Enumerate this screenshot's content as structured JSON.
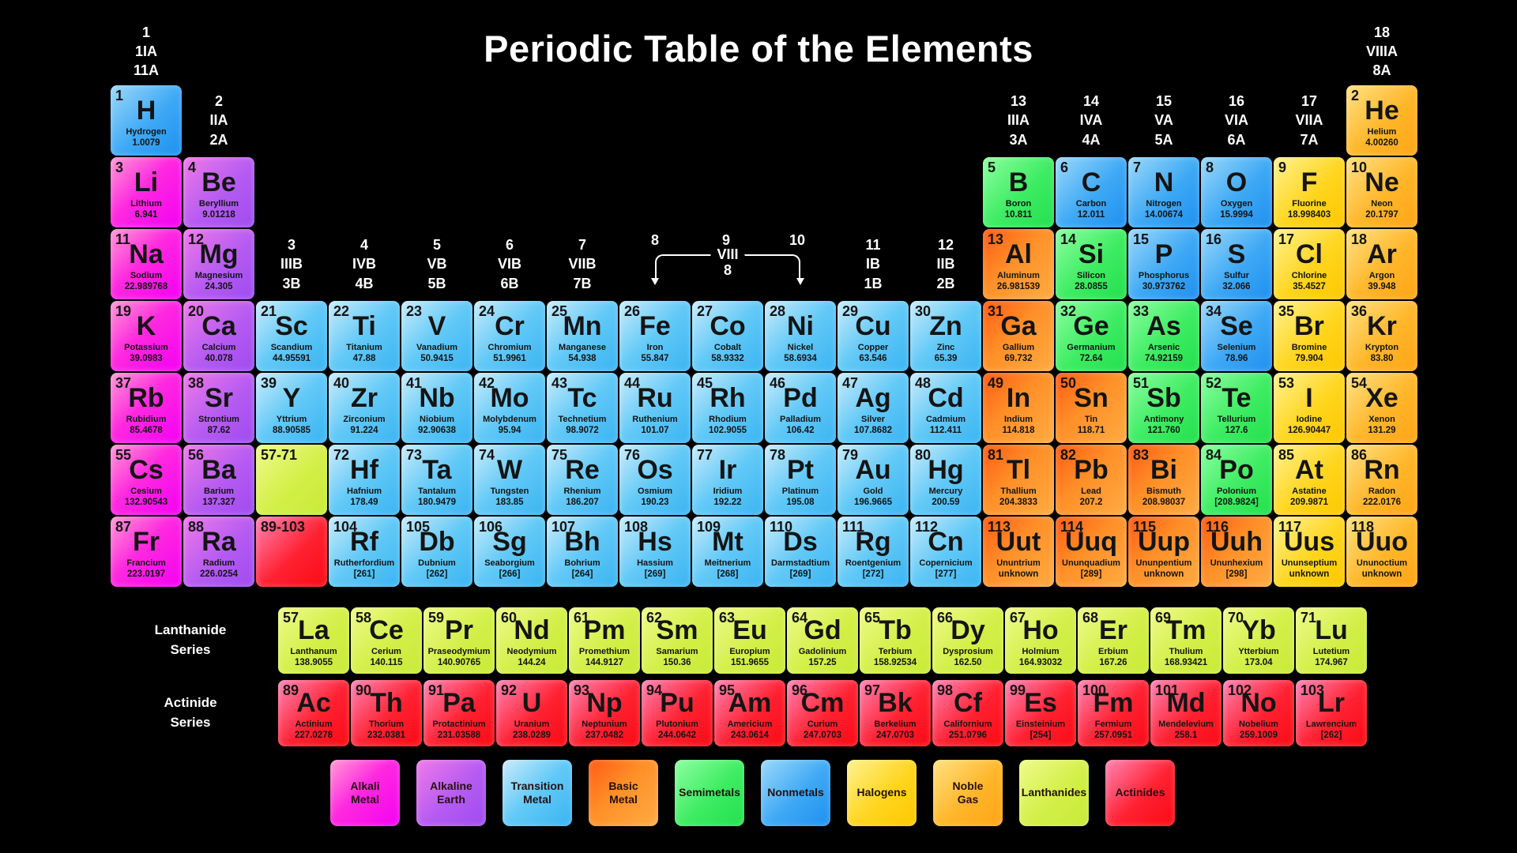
{
  "title": "Periodic Table of the Elements",
  "colors": {
    "background": "#000000",
    "title_text": "#ffffff",
    "alkali": "#ff00ff",
    "alkaline": "#a855f7",
    "transition": "#4fc3f7",
    "basic": "#ff8c1a",
    "semimetal": "#2ee84e",
    "nonmetal": "#2196f3",
    "halogen": "#ffd117",
    "noble": "#ffa416",
    "lanthanide": "#cdea3f",
    "actinide": "#ff1a1a"
  },
  "group_headers": {
    "top": [
      {
        "col": 1,
        "lines": [
          "1",
          "1IA",
          "11A"
        ]
      },
      {
        "col": 18,
        "lines": [
          "18",
          "VIIIA",
          "8A"
        ]
      }
    ],
    "period1": [
      {
        "col": 2,
        "lines": [
          "2",
          "IIA",
          "2A"
        ]
      },
      {
        "col": 13,
        "lines": [
          "13",
          "IIIA",
          "3A"
        ]
      },
      {
        "col": 14,
        "lines": [
          "14",
          "IVA",
          "4A"
        ]
      },
      {
        "col": 15,
        "lines": [
          "15",
          "VA",
          "5A"
        ]
      },
      {
        "col": 16,
        "lines": [
          "16",
          "VIA",
          "6A"
        ]
      },
      {
        "col": 17,
        "lines": [
          "17",
          "VIIA",
          "7A"
        ]
      }
    ],
    "period3": [
      {
        "col": 3,
        "lines": [
          "3",
          "IIIB",
          "3B"
        ]
      },
      {
        "col": 4,
        "lines": [
          "4",
          "IVB",
          "4B"
        ]
      },
      {
        "col": 5,
        "lines": [
          "5",
          "VB",
          "5B"
        ]
      },
      {
        "col": 6,
        "lines": [
          "6",
          "VIB",
          "6B"
        ]
      },
      {
        "col": 7,
        "lines": [
          "7",
          "VIIB",
          "7B"
        ]
      },
      {
        "col": 11,
        "lines": [
          "11",
          "IB",
          "1B"
        ]
      },
      {
        "col": 12,
        "lines": [
          "12",
          "IIB",
          "2B"
        ]
      }
    ],
    "viii_group": {
      "left_num": "8",
      "mid_num": "9",
      "right_num": "10",
      "bracket_label": "VIII",
      "bracket_sub": "8"
    }
  },
  "series": {
    "lanthanide_label_line1": "Lanthanide",
    "lanthanide_label_line2": "Series",
    "actinide_label_line1": "Actinide",
    "actinide_label_line2": "Series"
  },
  "placeholders": [
    {
      "label": "57-71",
      "cat": "lanthanide",
      "period": 6,
      "col": 3
    },
    {
      "label": "89-103",
      "cat": "actinide",
      "period": 7,
      "col": 3
    }
  ],
  "elements": [
    {
      "n": 1,
      "s": "H",
      "nm": "Hydrogen",
      "m": "1.0079",
      "c": "nonmetal",
      "p": 1,
      "g": 1
    },
    {
      "n": 2,
      "s": "He",
      "nm": "Helium",
      "m": "4.00260",
      "c": "noble",
      "p": 1,
      "g": 18
    },
    {
      "n": 3,
      "s": "Li",
      "nm": "Lithium",
      "m": "6.941",
      "c": "alkali",
      "p": 2,
      "g": 1
    },
    {
      "n": 4,
      "s": "Be",
      "nm": "Beryllium",
      "m": "9.01218",
      "c": "alkaline",
      "p": 2,
      "g": 2
    },
    {
      "n": 5,
      "s": "B",
      "nm": "Boron",
      "m": "10.811",
      "c": "semimetal",
      "p": 2,
      "g": 13
    },
    {
      "n": 6,
      "s": "C",
      "nm": "Carbon",
      "m": "12.011",
      "c": "nonmetal",
      "p": 2,
      "g": 14
    },
    {
      "n": 7,
      "s": "N",
      "nm": "Nitrogen",
      "m": "14.00674",
      "c": "nonmetal",
      "p": 2,
      "g": 15
    },
    {
      "n": 8,
      "s": "O",
      "nm": "Oxygen",
      "m": "15.9994",
      "c": "nonmetal",
      "p": 2,
      "g": 16
    },
    {
      "n": 9,
      "s": "F",
      "nm": "Fluorine",
      "m": "18.998403",
      "c": "halogen",
      "p": 2,
      "g": 17
    },
    {
      "n": 10,
      "s": "Ne",
      "nm": "Neon",
      "m": "20.1797",
      "c": "noble",
      "p": 2,
      "g": 18
    },
    {
      "n": 11,
      "s": "Na",
      "nm": "Sodium",
      "m": "22.989768",
      "c": "alkali",
      "p": 3,
      "g": 1
    },
    {
      "n": 12,
      "s": "Mg",
      "nm": "Magnesium",
      "m": "24.305",
      "c": "alkaline",
      "p": 3,
      "g": 2
    },
    {
      "n": 13,
      "s": "Al",
      "nm": "Aluminum",
      "m": "26.981539",
      "c": "basic",
      "p": 3,
      "g": 13
    },
    {
      "n": 14,
      "s": "Si",
      "nm": "Silicon",
      "m": "28.0855",
      "c": "semimetal",
      "p": 3,
      "g": 14
    },
    {
      "n": 15,
      "s": "P",
      "nm": "Phosphorus",
      "m": "30.973762",
      "c": "nonmetal",
      "p": 3,
      "g": 15
    },
    {
      "n": 16,
      "s": "S",
      "nm": "Sulfur",
      "m": "32.066",
      "c": "nonmetal",
      "p": 3,
      "g": 16
    },
    {
      "n": 17,
      "s": "Cl",
      "nm": "Chlorine",
      "m": "35.4527",
      "c": "halogen",
      "p": 3,
      "g": 17
    },
    {
      "n": 18,
      "s": "Ar",
      "nm": "Argon",
      "m": "39.948",
      "c": "noble",
      "p": 3,
      "g": 18
    },
    {
      "n": 19,
      "s": "K",
      "nm": "Potassium",
      "m": "39.0983",
      "c": "alkali",
      "p": 4,
      "g": 1
    },
    {
      "n": 20,
      "s": "Ca",
      "nm": "Calcium",
      "m": "40.078",
      "c": "alkaline",
      "p": 4,
      "g": 2
    },
    {
      "n": 21,
      "s": "Sc",
      "nm": "Scandium",
      "m": "44.95591",
      "c": "transition",
      "p": 4,
      "g": 3
    },
    {
      "n": 22,
      "s": "Ti",
      "nm": "Titanium",
      "m": "47.88",
      "c": "transition",
      "p": 4,
      "g": 4
    },
    {
      "n": 23,
      "s": "V",
      "nm": "Vanadium",
      "m": "50.9415",
      "c": "transition",
      "p": 4,
      "g": 5
    },
    {
      "n": 24,
      "s": "Cr",
      "nm": "Chromium",
      "m": "51.9961",
      "c": "transition",
      "p": 4,
      "g": 6
    },
    {
      "n": 25,
      "s": "Mn",
      "nm": "Manganese",
      "m": "54.938",
      "c": "transition",
      "p": 4,
      "g": 7
    },
    {
      "n": 26,
      "s": "Fe",
      "nm": "Iron",
      "m": "55.847",
      "c": "transition",
      "p": 4,
      "g": 8
    },
    {
      "n": 27,
      "s": "Co",
      "nm": "Cobalt",
      "m": "58.9332",
      "c": "transition",
      "p": 4,
      "g": 9
    },
    {
      "n": 28,
      "s": "Ni",
      "nm": "Nickel",
      "m": "58.6934",
      "c": "transition",
      "p": 4,
      "g": 10
    },
    {
      "n": 29,
      "s": "Cu",
      "nm": "Copper",
      "m": "63.546",
      "c": "transition",
      "p": 4,
      "g": 11
    },
    {
      "n": 30,
      "s": "Zn",
      "nm": "Zinc",
      "m": "65.39",
      "c": "transition",
      "p": 4,
      "g": 12
    },
    {
      "n": 31,
      "s": "Ga",
      "nm": "Gallium",
      "m": "69.732",
      "c": "basic",
      "p": 4,
      "g": 13
    },
    {
      "n": 32,
      "s": "Ge",
      "nm": "Germanium",
      "m": "72.64",
      "c": "semimetal",
      "p": 4,
      "g": 14
    },
    {
      "n": 33,
      "s": "As",
      "nm": "Arsenic",
      "m": "74.92159",
      "c": "semimetal",
      "p": 4,
      "g": 15
    },
    {
      "n": 34,
      "s": "Se",
      "nm": "Selenium",
      "m": "78.96",
      "c": "nonmetal",
      "p": 4,
      "g": 16
    },
    {
      "n": 35,
      "s": "Br",
      "nm": "Bromine",
      "m": "79.904",
      "c": "halogen",
      "p": 4,
      "g": 17
    },
    {
      "n": 36,
      "s": "Kr",
      "nm": "Krypton",
      "m": "83.80",
      "c": "noble",
      "p": 4,
      "g": 18
    },
    {
      "n": 37,
      "s": "Rb",
      "nm": "Rubidium",
      "m": "85.4678",
      "c": "alkali",
      "p": 5,
      "g": 1
    },
    {
      "n": 38,
      "s": "Sr",
      "nm": "Strontium",
      "m": "87.62",
      "c": "alkaline",
      "p": 5,
      "g": 2
    },
    {
      "n": 39,
      "s": "Y",
      "nm": "Yttrium",
      "m": "88.90585",
      "c": "transition",
      "p": 5,
      "g": 3
    },
    {
      "n": 40,
      "s": "Zr",
      "nm": "Zirconium",
      "m": "91.224",
      "c": "transition",
      "p": 5,
      "g": 4
    },
    {
      "n": 41,
      "s": "Nb",
      "nm": "Niobium",
      "m": "92.90638",
      "c": "transition",
      "p": 5,
      "g": 5
    },
    {
      "n": 42,
      "s": "Mo",
      "nm": "Molybdenum",
      "m": "95.94",
      "c": "transition",
      "p": 5,
      "g": 6
    },
    {
      "n": 43,
      "s": "Tc",
      "nm": "Technetium",
      "m": "98.9072",
      "c": "transition",
      "p": 5,
      "g": 7
    },
    {
      "n": 44,
      "s": "Ru",
      "nm": "Ruthenium",
      "m": "101.07",
      "c": "transition",
      "p": 5,
      "g": 8
    },
    {
      "n": 45,
      "s": "Rh",
      "nm": "Rhodium",
      "m": "102.9055",
      "c": "transition",
      "p": 5,
      "g": 9
    },
    {
      "n": 46,
      "s": "Pd",
      "nm": "Palladium",
      "m": "106.42",
      "c": "transition",
      "p": 5,
      "g": 10
    },
    {
      "n": 47,
      "s": "Ag",
      "nm": "Silver",
      "m": "107.8682",
      "c": "transition",
      "p": 5,
      "g": 11
    },
    {
      "n": 48,
      "s": "Cd",
      "nm": "Cadmium",
      "m": "112.411",
      "c": "transition",
      "p": 5,
      "g": 12
    },
    {
      "n": 49,
      "s": "In",
      "nm": "Indium",
      "m": "114.818",
      "c": "basic",
      "p": 5,
      "g": 13
    },
    {
      "n": 50,
      "s": "Sn",
      "nm": "Tin",
      "m": "118.71",
      "c": "basic",
      "p": 5,
      "g": 14
    },
    {
      "n": 51,
      "s": "Sb",
      "nm": "Antimony",
      "m": "121.760",
      "c": "semimetal",
      "p": 5,
      "g": 15
    },
    {
      "n": 52,
      "s": "Te",
      "nm": "Tellurium",
      "m": "127.6",
      "c": "semimetal",
      "p": 5,
      "g": 16
    },
    {
      "n": 53,
      "s": "I",
      "nm": "Iodine",
      "m": "126.90447",
      "c": "halogen",
      "p": 5,
      "g": 17
    },
    {
      "n": 54,
      "s": "Xe",
      "nm": "Xenon",
      "m": "131.29",
      "c": "noble",
      "p": 5,
      "g": 18
    },
    {
      "n": 55,
      "s": "Cs",
      "nm": "Cesium",
      "m": "132.90543",
      "c": "alkali",
      "p": 6,
      "g": 1
    },
    {
      "n": 56,
      "s": "Ba",
      "nm": "Barium",
      "m": "137.327",
      "c": "alkaline",
      "p": 6,
      "g": 2
    },
    {
      "n": 72,
      "s": "Hf",
      "nm": "Hafnium",
      "m": "178.49",
      "c": "transition",
      "p": 6,
      "g": 4
    },
    {
      "n": 73,
      "s": "Ta",
      "nm": "Tantalum",
      "m": "180.9479",
      "c": "transition",
      "p": 6,
      "g": 5
    },
    {
      "n": 74,
      "s": "W",
      "nm": "Tungsten",
      "m": "183.85",
      "c": "transition",
      "p": 6,
      "g": 6
    },
    {
      "n": 75,
      "s": "Re",
      "nm": "Rhenium",
      "m": "186.207",
      "c": "transition",
      "p": 6,
      "g": 7
    },
    {
      "n": 76,
      "s": "Os",
      "nm": "Osmium",
      "m": "190.23",
      "c": "transition",
      "p": 6,
      "g": 8
    },
    {
      "n": 77,
      "s": "Ir",
      "nm": "Iridium",
      "m": "192.22",
      "c": "transition",
      "p": 6,
      "g": 9
    },
    {
      "n": 78,
      "s": "Pt",
      "nm": "Platinum",
      "m": "195.08",
      "c": "transition",
      "p": 6,
      "g": 10
    },
    {
      "n": 79,
      "s": "Au",
      "nm": "Gold",
      "m": "196.9665",
      "c": "transition",
      "p": 6,
      "g": 11
    },
    {
      "n": 80,
      "s": "Hg",
      "nm": "Mercury",
      "m": "200.59",
      "c": "transition",
      "p": 6,
      "g": 12
    },
    {
      "n": 81,
      "s": "Tl",
      "nm": "Thallium",
      "m": "204.3833",
      "c": "basic",
      "p": 6,
      "g": 13
    },
    {
      "n": 82,
      "s": "Pb",
      "nm": "Lead",
      "m": "207.2",
      "c": "basic",
      "p": 6,
      "g": 14
    },
    {
      "n": 83,
      "s": "Bi",
      "nm": "Bismuth",
      "m": "208.98037",
      "c": "basic",
      "p": 6,
      "g": 15
    },
    {
      "n": 84,
      "s": "Po",
      "nm": "Polonium",
      "m": "[208.9824]",
      "c": "semimetal",
      "p": 6,
      "g": 16
    },
    {
      "n": 85,
      "s": "At",
      "nm": "Astatine",
      "m": "209.9871",
      "c": "halogen",
      "p": 6,
      "g": 17
    },
    {
      "n": 86,
      "s": "Rn",
      "nm": "Radon",
      "m": "222.0176",
      "c": "noble",
      "p": 6,
      "g": 18
    },
    {
      "n": 87,
      "s": "Fr",
      "nm": "Francium",
      "m": "223.0197",
      "c": "alkali",
      "p": 7,
      "g": 1
    },
    {
      "n": 88,
      "s": "Ra",
      "nm": "Radium",
      "m": "226.0254",
      "c": "alkaline",
      "p": 7,
      "g": 2
    },
    {
      "n": 104,
      "s": "Rf",
      "nm": "Rutherfordium",
      "m": "[261]",
      "c": "transition",
      "p": 7,
      "g": 4
    },
    {
      "n": 105,
      "s": "Db",
      "nm": "Dubnium",
      "m": "[262]",
      "c": "transition",
      "p": 7,
      "g": 5
    },
    {
      "n": 106,
      "s": "Sg",
      "nm": "Seaborgium",
      "m": "[266]",
      "c": "transition",
      "p": 7,
      "g": 6
    },
    {
      "n": 107,
      "s": "Bh",
      "nm": "Bohrium",
      "m": "[264]",
      "c": "transition",
      "p": 7,
      "g": 7
    },
    {
      "n": 108,
      "s": "Hs",
      "nm": "Hassium",
      "m": "[269]",
      "c": "transition",
      "p": 7,
      "g": 8
    },
    {
      "n": 109,
      "s": "Mt",
      "nm": "Meitnerium",
      "m": "[268]",
      "c": "transition",
      "p": 7,
      "g": 9
    },
    {
      "n": 110,
      "s": "Ds",
      "nm": "Darmstadtium",
      "m": "[269]",
      "c": "transition",
      "p": 7,
      "g": 10
    },
    {
      "n": 111,
      "s": "Rg",
      "nm": "Roentgenium",
      "m": "[272]",
      "c": "transition",
      "p": 7,
      "g": 11
    },
    {
      "n": 112,
      "s": "Cn",
      "nm": "Copernicium",
      "m": "[277]",
      "c": "transition",
      "p": 7,
      "g": 12
    },
    {
      "n": 113,
      "s": "Uut",
      "nm": "Ununtrium",
      "m": "unknown",
      "c": "basic",
      "p": 7,
      "g": 13
    },
    {
      "n": 114,
      "s": "Uuq",
      "nm": "Ununquadium",
      "m": "[289]",
      "c": "basic",
      "p": 7,
      "g": 14
    },
    {
      "n": 115,
      "s": "Uup",
      "nm": "Ununpentium",
      "m": "unknown",
      "c": "basic",
      "p": 7,
      "g": 15
    },
    {
      "n": 116,
      "s": "Uuh",
      "nm": "Ununhexium",
      "m": "[298]",
      "c": "basic",
      "p": 7,
      "g": 16
    },
    {
      "n": 117,
      "s": "Uus",
      "nm": "Ununseptium",
      "m": "unknown",
      "c": "halogen",
      "p": 7,
      "g": 17
    },
    {
      "n": 118,
      "s": "Uuo",
      "nm": "Ununoctium",
      "m": "unknown",
      "c": "noble",
      "p": 7,
      "g": 18
    }
  ],
  "lanthanides": [
    {
      "n": 57,
      "s": "La",
      "nm": "Lanthanum",
      "m": "138.9055",
      "c": "lanthanide"
    },
    {
      "n": 58,
      "s": "Ce",
      "nm": "Cerium",
      "m": "140.115",
      "c": "lanthanide"
    },
    {
      "n": 59,
      "s": "Pr",
      "nm": "Praseodymium",
      "m": "140.90765",
      "c": "lanthanide"
    },
    {
      "n": 60,
      "s": "Nd",
      "nm": "Neodymium",
      "m": "144.24",
      "c": "lanthanide"
    },
    {
      "n": 61,
      "s": "Pm",
      "nm": "Promethium",
      "m": "144.9127",
      "c": "lanthanide"
    },
    {
      "n": 62,
      "s": "Sm",
      "nm": "Samarium",
      "m": "150.36",
      "c": "lanthanide"
    },
    {
      "n": 63,
      "s": "Eu",
      "nm": "Europium",
      "m": "151.9655",
      "c": "lanthanide"
    },
    {
      "n": 64,
      "s": "Gd",
      "nm": "Gadolinium",
      "m": "157.25",
      "c": "lanthanide"
    },
    {
      "n": 65,
      "s": "Tb",
      "nm": "Terbium",
      "m": "158.92534",
      "c": "lanthanide"
    },
    {
      "n": 66,
      "s": "Dy",
      "nm": "Dysprosium",
      "m": "162.50",
      "c": "lanthanide"
    },
    {
      "n": 67,
      "s": "Ho",
      "nm": "Holmium",
      "m": "164.93032",
      "c": "lanthanide"
    },
    {
      "n": 68,
      "s": "Er",
      "nm": "Erbium",
      "m": "167.26",
      "c": "lanthanide"
    },
    {
      "n": 69,
      "s": "Tm",
      "nm": "Thulium",
      "m": "168.93421",
      "c": "lanthanide"
    },
    {
      "n": 70,
      "s": "Yb",
      "nm": "Ytterbium",
      "m": "173.04",
      "c": "lanthanide"
    },
    {
      "n": 71,
      "s": "Lu",
      "nm": "Lutetium",
      "m": "174.967",
      "c": "lanthanide"
    }
  ],
  "actinides": [
    {
      "n": 89,
      "s": "Ac",
      "nm": "Actinium",
      "m": "227.0278",
      "c": "actinide"
    },
    {
      "n": 90,
      "s": "Th",
      "nm": "Thorium",
      "m": "232.0381",
      "c": "actinide"
    },
    {
      "n": 91,
      "s": "Pa",
      "nm": "Protactinium",
      "m": "231.03588",
      "c": "actinide"
    },
    {
      "n": 92,
      "s": "U",
      "nm": "Uranium",
      "m": "238.0289",
      "c": "actinide"
    },
    {
      "n": 93,
      "s": "Np",
      "nm": "Neptunium",
      "m": "237.0482",
      "c": "actinide"
    },
    {
      "n": 94,
      "s": "Pu",
      "nm": "Plutonium",
      "m": "244.0642",
      "c": "actinide"
    },
    {
      "n": 95,
      "s": "Am",
      "nm": "Americium",
      "m": "243.0614",
      "c": "actinide"
    },
    {
      "n": 96,
      "s": "Cm",
      "nm": "Curium",
      "m": "247.0703",
      "c": "actinide"
    },
    {
      "n": 97,
      "s": "Bk",
      "nm": "Berkelium",
      "m": "247.0703",
      "c": "actinide"
    },
    {
      "n": 98,
      "s": "Cf",
      "nm": "Californium",
      "m": "251.0796",
      "c": "actinide"
    },
    {
      "n": 99,
      "s": "Es",
      "nm": "Einsteinium",
      "m": "[254]",
      "c": "actinide"
    },
    {
      "n": 100,
      "s": "Fm",
      "nm": "Fermium",
      "m": "257.0951",
      "c": "actinide"
    },
    {
      "n": 101,
      "s": "Md",
      "nm": "Mendelevium",
      "m": "258.1",
      "c": "actinide"
    },
    {
      "n": 102,
      "s": "No",
      "nm": "Nobelium",
      "m": "259.1009",
      "c": "actinide"
    },
    {
      "n": 103,
      "s": "Lr",
      "nm": "Lawrencium",
      "m": "[262]",
      "c": "actinide"
    }
  ],
  "legend": [
    {
      "lines": [
        "Alkali",
        "Metal"
      ],
      "cat": "alkali"
    },
    {
      "lines": [
        "Alkaline",
        "Earth"
      ],
      "cat": "alkaline"
    },
    {
      "lines": [
        "Transition",
        "Metal"
      ],
      "cat": "transition"
    },
    {
      "lines": [
        "Basic",
        "Metal"
      ],
      "cat": "basic"
    },
    {
      "lines": [
        "Semimetals"
      ],
      "cat": "semimetal"
    },
    {
      "lines": [
        "Nonmetals"
      ],
      "cat": "nonmetal"
    },
    {
      "lines": [
        "Halogens"
      ],
      "cat": "halogen"
    },
    {
      "lines": [
        "Noble",
        "Gas"
      ],
      "cat": "noble"
    },
    {
      "lines": [
        "Lanthanides"
      ],
      "cat": "lanthanide"
    },
    {
      "lines": [
        "Actinides"
      ],
      "cat": "actinide"
    }
  ]
}
